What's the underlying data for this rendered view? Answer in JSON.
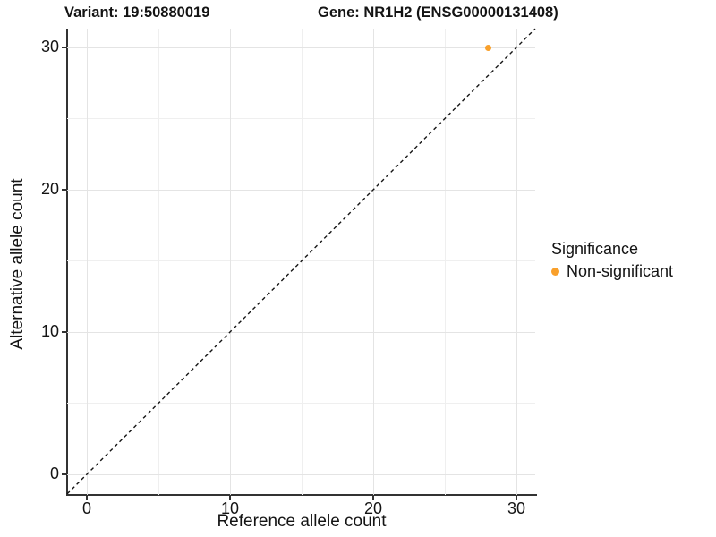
{
  "chart_data": {
    "type": "scatter",
    "title": {
      "left": "Variant: 19:50880019",
      "right": "Gene: NR1H2 (ENSG00000131408)"
    },
    "xlabel": "Reference allele count",
    "ylabel": "Alternative allele count",
    "x_ticks": [
      0,
      10,
      20,
      30
    ],
    "y_ticks": [
      0,
      10,
      20,
      30
    ],
    "minor_tick_step": 5,
    "xlim": [
      -1.4,
      31.3
    ],
    "ylim": [
      -1.4,
      31.3
    ],
    "grid": "major+minor",
    "points": [
      {
        "x": 28,
        "y": 30,
        "series": "Non-significant"
      }
    ],
    "abline": {
      "slope": 1,
      "intercept": 0,
      "linetype": "dashed"
    },
    "legend": {
      "title": "Significance",
      "position": "right",
      "entries": [
        {
          "label": "Non-significant",
          "color": "#F9A02B"
        }
      ]
    },
    "colors": {
      "point": "#F9A02B",
      "abline": "#151515",
      "axis_line": "#333333",
      "grid_major": "#E4E4E4",
      "grid_minor": "#EFEFEF",
      "text": "#141414"
    }
  }
}
